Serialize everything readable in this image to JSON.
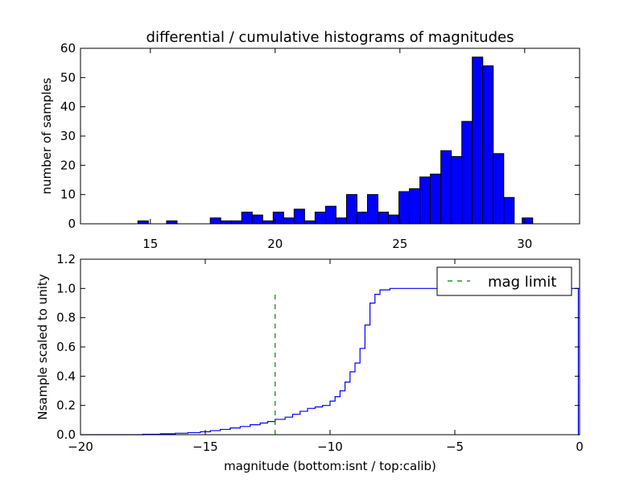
{
  "figure": {
    "title": "differential / cumulative histograms of magnitudes"
  },
  "chart_data": [
    {
      "type": "bar",
      "title": "differential / cumulative histograms of magnitudes",
      "xlabel": "",
      "ylabel": "number of samples",
      "xlim": [
        12.2,
        32.2
      ],
      "ylim": [
        0,
        60
      ],
      "xticks": [
        15,
        20,
        25,
        30
      ],
      "yticks": [
        0,
        10,
        20,
        30,
        40,
        50,
        60
      ],
      "bar_color": "#0000ff",
      "edge_color": "#000000",
      "bins": [
        {
          "x0": 14.5,
          "x1": 14.92,
          "value": 1
        },
        {
          "x0": 15.65,
          "x1": 16.07,
          "value": 1
        },
        {
          "x0": 17.4,
          "x1": 17.82,
          "value": 2
        },
        {
          "x0": 17.82,
          "x1": 18.24,
          "value": 1
        },
        {
          "x0": 18.24,
          "x1": 18.66,
          "value": 1
        },
        {
          "x0": 18.66,
          "x1": 19.08,
          "value": 4
        },
        {
          "x0": 19.08,
          "x1": 19.5,
          "value": 3
        },
        {
          "x0": 19.5,
          "x1": 19.92,
          "value": 1
        },
        {
          "x0": 19.92,
          "x1": 20.34,
          "value": 4
        },
        {
          "x0": 20.34,
          "x1": 20.76,
          "value": 2
        },
        {
          "x0": 20.76,
          "x1": 21.18,
          "value": 5
        },
        {
          "x0": 21.18,
          "x1": 21.6,
          "value": 1
        },
        {
          "x0": 21.6,
          "x1": 22.02,
          "value": 4
        },
        {
          "x0": 22.02,
          "x1": 22.44,
          "value": 6
        },
        {
          "x0": 22.44,
          "x1": 22.86,
          "value": 2
        },
        {
          "x0": 22.86,
          "x1": 23.28,
          "value": 10
        },
        {
          "x0": 23.28,
          "x1": 23.7,
          "value": 4
        },
        {
          "x0": 23.7,
          "x1": 24.12,
          "value": 10
        },
        {
          "x0": 24.12,
          "x1": 24.54,
          "value": 4
        },
        {
          "x0": 24.54,
          "x1": 24.96,
          "value": 3
        },
        {
          "x0": 24.96,
          "x1": 25.38,
          "value": 11
        },
        {
          "x0": 25.38,
          "x1": 25.8,
          "value": 12
        },
        {
          "x0": 25.8,
          "x1": 26.22,
          "value": 16
        },
        {
          "x0": 26.22,
          "x1": 26.64,
          "value": 17
        },
        {
          "x0": 26.64,
          "x1": 27.06,
          "value": 25
        },
        {
          "x0": 27.06,
          "x1": 27.48,
          "value": 23
        },
        {
          "x0": 27.48,
          "x1": 27.9,
          "value": 35
        },
        {
          "x0": 27.9,
          "x1": 28.32,
          "value": 57
        },
        {
          "x0": 28.32,
          "x1": 28.74,
          "value": 54
        },
        {
          "x0": 28.74,
          "x1": 29.16,
          "value": 24
        },
        {
          "x0": 29.16,
          "x1": 29.58,
          "value": 9
        },
        {
          "x0": 29.9,
          "x1": 30.32,
          "value": 2
        }
      ]
    },
    {
      "type": "line",
      "xlabel": "magnitude (bottom:isnt / top:calib)",
      "ylabel": "Nsample scaled to unity",
      "xlim": [
        -20,
        0
      ],
      "ylim": [
        0,
        1.2
      ],
      "xticks": [
        -20,
        -15,
        -10,
        -5,
        0
      ],
      "xtick_labels": [
        "−20",
        "−15",
        "−10",
        "−5",
        "0"
      ],
      "yticks": [
        0.0,
        0.2,
        0.4,
        0.6,
        0.8,
        1.0,
        1.2
      ],
      "ytick_labels": [
        "0.0",
        "0.2",
        "0.4",
        "0.6",
        "0.8",
        "1.0",
        "1.2"
      ],
      "legend": {
        "placement": "upper-right",
        "entries": [
          {
            "label": "mag limit",
            "color": "#008000",
            "style": "dashed"
          }
        ]
      },
      "series": [
        {
          "style": "step",
          "color": "#0000ff",
          "x": [
            -20,
            -17.5,
            -16.8,
            -16.2,
            -15.7,
            -15.2,
            -14.8,
            -14.4,
            -14.0,
            -13.6,
            -13.2,
            -12.8,
            -12.5,
            -12.2,
            -11.8,
            -11.5,
            -11.2,
            -10.9,
            -10.6,
            -10.3,
            -10.0,
            -9.8,
            -9.6,
            -9.4,
            -9.2,
            -9.0,
            -8.8,
            -8.6,
            -8.4,
            -8.2,
            -8.0,
            -7.6,
            -7.4,
            -7.0,
            -0.05,
            -0.05,
            0
          ],
          "y": [
            0.0,
            0.003,
            0.006,
            0.01,
            0.014,
            0.02,
            0.028,
            0.036,
            0.046,
            0.056,
            0.068,
            0.08,
            0.09,
            0.105,
            0.12,
            0.14,
            0.16,
            0.18,
            0.19,
            0.2,
            0.23,
            0.26,
            0.3,
            0.36,
            0.43,
            0.49,
            0.59,
            0.75,
            0.9,
            0.96,
            0.99,
            1.0,
            1.0,
            1.0,
            1.0,
            0.0,
            0.0
          ]
        },
        {
          "name": "mag limit",
          "style": "dashed",
          "color": "#008000",
          "x": [
            -12.2,
            -12.2
          ],
          "y": [
            0.0,
            0.97
          ]
        }
      ]
    }
  ]
}
